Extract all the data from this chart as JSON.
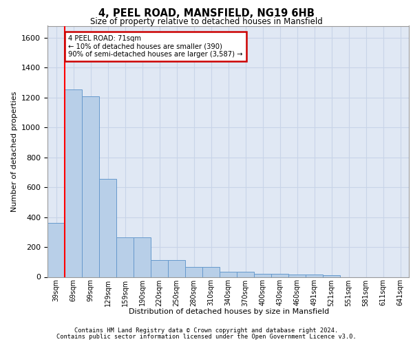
{
  "title1": "4, PEEL ROAD, MANSFIELD, NG19 6HB",
  "title2": "Size of property relative to detached houses in Mansfield",
  "xlabel": "Distribution of detached houses by size in Mansfield",
  "ylabel": "Number of detached properties",
  "categories": [
    "39sqm",
    "69sqm",
    "99sqm",
    "129sqm",
    "159sqm",
    "190sqm",
    "220sqm",
    "250sqm",
    "280sqm",
    "310sqm",
    "340sqm",
    "370sqm",
    "400sqm",
    "430sqm",
    "460sqm",
    "491sqm",
    "521sqm",
    "551sqm",
    "581sqm",
    "611sqm",
    "641sqm"
  ],
  "values": [
    360,
    1255,
    1210,
    655,
    265,
    265,
    115,
    115,
    65,
    65,
    35,
    35,
    22,
    22,
    15,
    15,
    10,
    0,
    0,
    0,
    0
  ],
  "bar_color": "#b8cfe8",
  "bar_edge_color": "#6699cc",
  "vline_x_idx": 1,
  "annotation_text": "4 PEEL ROAD: 71sqm\n← 10% of detached houses are smaller (390)\n90% of semi-detached houses are larger (3,587) →",
  "annotation_box_color": "white",
  "annotation_box_edge_color": "#cc0000",
  "ylim": [
    0,
    1680
  ],
  "yticks": [
    0,
    200,
    400,
    600,
    800,
    1000,
    1200,
    1400,
    1600
  ],
  "grid_color": "#c8d4e8",
  "background_color": "#e0e8f4",
  "footer1": "Contains HM Land Registry data © Crown copyright and database right 2024.",
  "footer2": "Contains public sector information licensed under the Open Government Licence v3.0."
}
